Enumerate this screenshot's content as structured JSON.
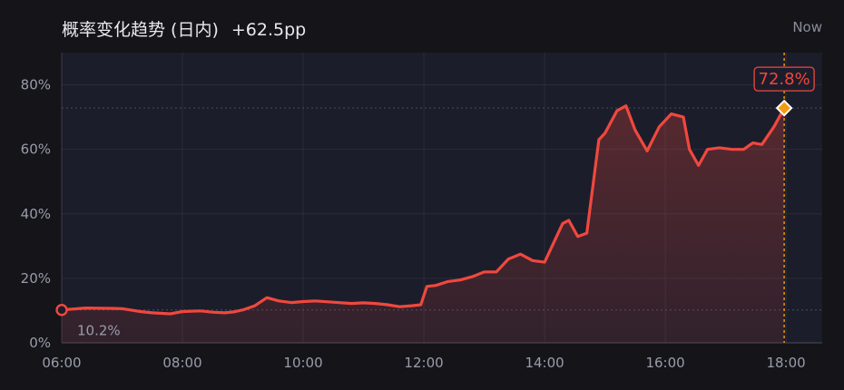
{
  "header": {
    "title": "概率变化趋势 (日内)",
    "change": "+62.5pp",
    "now_label": "Now"
  },
  "colors": {
    "background": "#141419",
    "plot_background": "#1c1d2a",
    "line": "#f0483e",
    "current_marker": "#f39c12",
    "grid": "#2a2c3a"
  },
  "chart_data": {
    "type": "area",
    "title": "概率变化趋势 (日内)",
    "xlabel": "",
    "ylabel": "",
    "x_ticks": [
      "06:00",
      "08:00",
      "10:00",
      "12:00",
      "14:00",
      "16:00",
      "18:00"
    ],
    "y_ticks": [
      "0%",
      "20%",
      "40%",
      "60%",
      "80%"
    ],
    "xlim": [
      6.0,
      18.6
    ],
    "ylim": [
      0,
      90
    ],
    "grid": true,
    "start_label": "10.2%",
    "end_label": "72.8%",
    "series": [
      {
        "x": [
          6.0,
          6.4,
          6.8,
          7.0,
          7.3,
          7.5,
          7.8,
          8.0,
          8.3,
          8.5,
          8.7,
          8.85,
          9.0,
          9.2,
          9.4,
          9.6,
          9.8,
          10.0,
          10.2,
          10.5,
          10.8,
          11.0,
          11.2,
          11.4,
          11.6,
          11.8,
          11.95,
          12.05,
          12.2,
          12.4,
          12.6,
          12.8,
          13.0,
          13.2,
          13.4,
          13.6,
          13.8,
          14.0,
          14.1,
          14.3,
          14.4,
          14.55,
          14.7,
          14.9,
          15.0,
          15.2,
          15.35,
          15.5,
          15.7,
          15.9,
          16.1,
          16.3,
          16.4,
          16.55,
          16.7,
          16.9,
          17.1,
          17.3,
          17.45,
          17.6,
          17.8,
          17.97
        ],
        "values": [
          10.2,
          10.8,
          10.7,
          10.6,
          9.7,
          9.3,
          9.0,
          9.7,
          9.9,
          9.5,
          9.3,
          9.6,
          10.2,
          11.5,
          14.0,
          13.0,
          12.5,
          12.8,
          13.0,
          12.6,
          12.2,
          12.4,
          12.2,
          11.8,
          11.2,
          11.5,
          11.8,
          17.5,
          17.8,
          19.0,
          19.5,
          20.5,
          22.0,
          22.0,
          26.0,
          27.5,
          25.5,
          25.0,
          29.0,
          37.0,
          38.0,
          33.0,
          34.0,
          63.0,
          65.0,
          72.0,
          73.5,
          66.0,
          59.5,
          67.0,
          71.0,
          70.0,
          60.0,
          55.0,
          60.0,
          60.5,
          60.0,
          60.0,
          62.0,
          61.5,
          67.0,
          72.8
        ]
      }
    ]
  }
}
